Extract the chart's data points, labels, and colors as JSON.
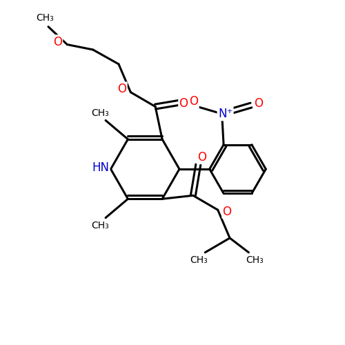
{
  "bg_color": "#ffffff",
  "bond_color": "#000000",
  "bond_width": 2.2,
  "O_color": "#ff0000",
  "N_color": "#0000cc",
  "font_size": 11,
  "fig_size": [
    5.0,
    5.0
  ],
  "dpi": 100,
  "xlim": [
    0,
    10
  ],
  "ylim": [
    0,
    10
  ]
}
